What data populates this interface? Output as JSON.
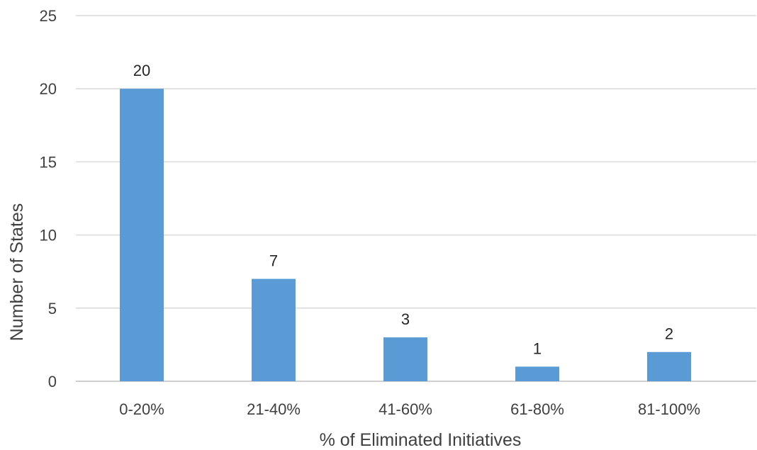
{
  "chart_data": {
    "type": "bar",
    "categories": [
      "0-20%",
      "21-40%",
      "41-60%",
      "61-80%",
      "81-100%"
    ],
    "values": [
      20,
      7,
      3,
      1,
      2
    ],
    "data_labels": [
      "20",
      "7",
      "3",
      "1",
      "2"
    ],
    "title": "",
    "xlabel": "% of Eliminated Initiatives",
    "ylabel": "Number of States",
    "ylim": [
      0,
      25
    ],
    "yticks": [
      0,
      5,
      10,
      15,
      20,
      25
    ],
    "ytick_labels": [
      "0",
      "5",
      "10",
      "15",
      "20",
      "25"
    ],
    "grid": true,
    "legend": "none",
    "bar_color": "#5b9bd5"
  }
}
